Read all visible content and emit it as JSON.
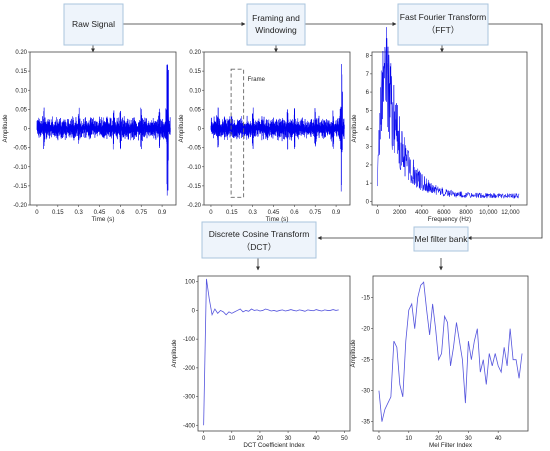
{
  "boxes": {
    "raw_signal": "Raw Signal",
    "framing_line1": "Framing and",
    "framing_line2": "Windowing",
    "fft_line1": "Fast Fourier Transform",
    "fft_line2": "（FFT）",
    "mel": "Mel filter bank",
    "dct_line1": "Discrete Cosine Transform",
    "dct_line2": "（DCT）"
  },
  "frame_label": "Frame",
  "colors": {
    "signal": "#0000ee",
    "line": "#5555dd",
    "box_fill": "#eef4fb",
    "box_stroke": "#aac4de"
  },
  "chart_data": [
    {
      "type": "line",
      "title": "",
      "xlabel": "Time (s)",
      "ylabel": "Amplitude",
      "xlim": [
        -0.05,
        1.0
      ],
      "ylim": [
        -0.2,
        0.2
      ],
      "x_ticks": [
        "0",
        "0.15",
        "0.3",
        "0.45",
        "0.6",
        "0.75",
        "0.9"
      ],
      "x_tick_values": [
        0,
        0.15,
        0.3,
        0.45,
        0.6,
        0.75,
        0.9
      ],
      "y_ticks": [
        "0.20",
        "0.15",
        "0.10",
        "0.05",
        "0",
        "-0.05",
        "-0.10",
        "-0.15",
        "-0.20"
      ],
      "y_tick_values": [
        0.2,
        0.15,
        0.1,
        0.05,
        0,
        -0.05,
        -0.1,
        -0.15,
        -0.2
      ],
      "waveform": {
        "x_range": [
          0,
          0.96
        ],
        "noise_amplitude": 0.025,
        "peak_amplitude": 0.18,
        "spike_x": [
          0.05,
          0.3,
          0.55,
          0.6,
          0.75,
          0.88,
          0.93
        ]
      }
    },
    {
      "type": "line",
      "title": "",
      "xlabel": "Time (s)",
      "ylabel": "Amplitude",
      "xlim": [
        -0.05,
        1.0
      ],
      "ylim": [
        -0.2,
        0.2
      ],
      "x_ticks": [
        "0",
        "0.15",
        "0.3",
        "0.45",
        "0.6",
        "0.75",
        "0.9"
      ],
      "x_tick_values": [
        0,
        0.15,
        0.3,
        0.45,
        0.6,
        0.75,
        0.9
      ],
      "y_ticks": [
        "0.20",
        "0.15",
        "0.10",
        "0.05",
        "0",
        "-0.05",
        "-0.10",
        "-0.15",
        "-0.20"
      ],
      "y_tick_values": [
        0.2,
        0.15,
        0.1,
        0.05,
        0,
        -0.05,
        -0.1,
        -0.15,
        -0.2
      ],
      "frame_window": {
        "x": [
          0.145,
          0.235
        ],
        "y": [
          -0.18,
          0.155
        ]
      },
      "waveform": {
        "x_range": [
          0,
          0.96
        ],
        "noise_amplitude": 0.025,
        "peak_amplitude": 0.17,
        "spike_x": [
          0.05,
          0.3,
          0.55,
          0.6,
          0.75,
          0.88,
          0.93
        ]
      }
    },
    {
      "type": "line",
      "title": "",
      "xlabel": "Frequency (Hz)",
      "ylabel": "Amplitude",
      "xlim": [
        -500,
        13500
      ],
      "ylim": [
        -0.2,
        8.2
      ],
      "x_ticks": [
        "0",
        "2000",
        "4000",
        "6000",
        "8000",
        "10,000",
        "12,000"
      ],
      "x_tick_values": [
        0,
        2000,
        4000,
        6000,
        8000,
        10000,
        12000
      ],
      "y_ticks": [
        "0",
        "1",
        "2",
        "3",
        "4",
        "5",
        "6",
        "7",
        "8"
      ],
      "y_tick_values": [
        0,
        1,
        2,
        3,
        4,
        5,
        6,
        7,
        8
      ],
      "spectrum": {
        "x_range": [
          0,
          12800
        ],
        "peak_x": 600,
        "peak_y": 7.8,
        "decay": 1500,
        "floor": 0.3
      }
    },
    {
      "type": "line",
      "title": "",
      "xlabel": "DCT Coefficient Index",
      "ylabel": "Amplitude",
      "xlim": [
        -2,
        52
      ],
      "ylim": [
        -420,
        120
      ],
      "x_ticks": [
        "0",
        "10",
        "20",
        "30",
        "40",
        "50"
      ],
      "x_tick_values": [
        0,
        10,
        20,
        30,
        40,
        50
      ],
      "y_ticks": [
        "100",
        "0",
        "-100",
        "-200",
        "-300",
        "-400"
      ],
      "y_tick_values": [
        100,
        0,
        -100,
        -200,
        -300,
        -400
      ],
      "x": [
        0,
        1,
        2,
        3,
        4,
        5,
        6,
        7,
        8,
        9,
        10,
        11,
        12,
        13,
        14,
        15,
        16,
        17,
        18,
        19,
        20,
        21,
        22,
        23,
        24,
        25,
        26,
        27,
        28,
        29,
        30,
        31,
        32,
        33,
        34,
        35,
        36,
        37,
        38,
        39,
        40,
        41,
        42,
        43,
        44,
        45,
        46,
        47,
        48
      ],
      "values": [
        -400,
        110,
        40,
        -15,
        5,
        -10,
        0,
        -5,
        -15,
        -5,
        -10,
        -5,
        0,
        5,
        -5,
        0,
        -3,
        5,
        0,
        2,
        -2,
        0,
        5,
        2,
        -2,
        0,
        -3,
        0,
        2,
        -2,
        0,
        3,
        0,
        -2,
        2,
        0,
        -3,
        2,
        0,
        -1,
        3,
        0,
        -2,
        2,
        0,
        0,
        3,
        0,
        2
      ]
    },
    {
      "type": "line",
      "title": "",
      "xlabel": "Mel Filter Index",
      "ylabel": "Amplitude",
      "xlim": [
        -2,
        50
      ],
      "ylim": [
        -36.5,
        -11.5
      ],
      "x_ticks": [
        "0",
        "10",
        "20",
        "30",
        "40"
      ],
      "x_tick_values": [
        0,
        10,
        20,
        30,
        40
      ],
      "y_ticks": [
        "-15",
        "-20",
        "-25",
        "-30",
        "-35"
      ],
      "y_tick_values": [
        -15,
        -20,
        -25,
        -30,
        -35
      ],
      "x": [
        0,
        1,
        2,
        3,
        4,
        5,
        6,
        7,
        8,
        9,
        10,
        11,
        12,
        13,
        14,
        15,
        16,
        17,
        18,
        19,
        20,
        21,
        22,
        23,
        24,
        25,
        26,
        27,
        28,
        29,
        30,
        31,
        32,
        33,
        34,
        35,
        36,
        37,
        38,
        39,
        40,
        41,
        42,
        43,
        44,
        45,
        46,
        47,
        48
      ],
      "values": [
        -30,
        -35,
        -33,
        -32,
        -31,
        -22,
        -23,
        -29,
        -31,
        -22,
        -17,
        -16,
        -20,
        -15,
        -13,
        -12.5,
        -17,
        -21,
        -16,
        -20,
        -25,
        -24,
        -18,
        -19,
        -26,
        -23,
        -19,
        -22,
        -25,
        -32,
        -22,
        -25,
        -22,
        -20,
        -27,
        -25,
        -29,
        -24,
        -26,
        -24,
        -26,
        -27,
        -23,
        -26,
        -20,
        -25,
        -25,
        -28,
        -24
      ]
    }
  ]
}
